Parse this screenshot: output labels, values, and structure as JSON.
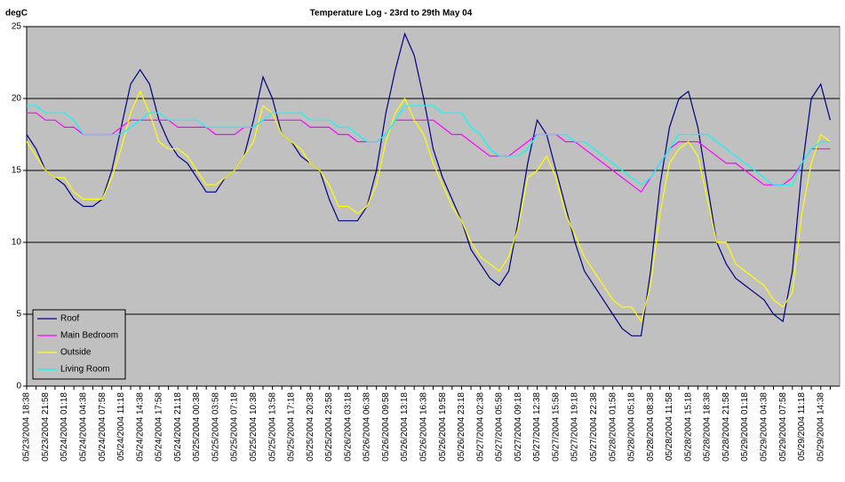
{
  "chart_data": {
    "type": "line",
    "title": "Temperature Log - 23rd to 29th May 04",
    "y_label": "degC",
    "categories": [
      "05/23/2004 18:38",
      null,
      "05/23/2004 21:58",
      null,
      "05/24/2004 01:18",
      null,
      "05/24/2004 04:38",
      null,
      "05/24/2004 07:58",
      null,
      "05/24/2004 11:18",
      null,
      "05/24/2004 14:38",
      null,
      "05/24/2004 17:58",
      null,
      "05/24/2004 21:18",
      null,
      "05/25/2004 00:38",
      null,
      "05/25/2004 03:58",
      null,
      "05/25/2004 07:18",
      null,
      "05/25/2004 10:38",
      null,
      "05/25/2004 13:58",
      null,
      "05/25/2004 17:18",
      null,
      "05/25/2004 20:38",
      null,
      "05/25/2004 23:58",
      null,
      "05/26/2004 03:18",
      null,
      "05/26/2004 06:38",
      null,
      "05/26/2004 09:58",
      null,
      "05/26/2004 13:18",
      null,
      "05/26/2004 16:38",
      null,
      "05/26/2004 19:58",
      null,
      "05/26/2004 23:18",
      null,
      "05/27/2004 02:38",
      null,
      "05/27/2004 05:58",
      null,
      "05/27/2004 09:18",
      null,
      "05/27/2004 12:38",
      null,
      "05/27/2004 15:58",
      null,
      "05/27/2004 19:18",
      null,
      "05/27/2004 22:38",
      null,
      "05/28/2004 01:58",
      null,
      "05/28/2004 05:18",
      null,
      "05/28/2004 08:38",
      null,
      "05/28/2004 11:58",
      null,
      "05/28/2004 15:18",
      null,
      "05/28/2004 18:38",
      null,
      "05/28/2004 21:58",
      null,
      "05/29/2004 01:18",
      null,
      "05/29/2004 04:38",
      null,
      "05/29/2004 07:58",
      null,
      "05/29/2004 11:18",
      null,
      "05/29/2004 14:38",
      null
    ],
    "series": [
      {
        "name": "Roof",
        "color": "#000080",
        "values": [
          17.5,
          16.5,
          15,
          14.5,
          14,
          13,
          12.5,
          12.5,
          13,
          15,
          18,
          21,
          22,
          21,
          18.5,
          17,
          16,
          15.5,
          14.5,
          13.5,
          13.5,
          14.5,
          15,
          16,
          18.5,
          21.5,
          20,
          17.5,
          17,
          16,
          15.5,
          15,
          13,
          11.5,
          11.5,
          11.5,
          12.5,
          15,
          19,
          22,
          24.5,
          23,
          20,
          16.5,
          14.5,
          13,
          11.5,
          9.5,
          8.5,
          7.5,
          7,
          8,
          11.5,
          15.5,
          18.5,
          17.5,
          15,
          12.5,
          10,
          8,
          7,
          6,
          5,
          4,
          3.5,
          3.5,
          8,
          14,
          18,
          20,
          20.5,
          18,
          14,
          10,
          8.5,
          7.5,
          7,
          6.5,
          6,
          5,
          4.5,
          8,
          15,
          20,
          21,
          18.5
        ]
      },
      {
        "name": "Main Bedroom",
        "color": "#ff00ff",
        "values": [
          19,
          19,
          18.5,
          18.5,
          18,
          18,
          17.5,
          17.5,
          17.5,
          17.5,
          18,
          18.5,
          18.5,
          18.5,
          18.5,
          18.5,
          18,
          18,
          18,
          18,
          17.5,
          17.5,
          17.5,
          18,
          18,
          18.5,
          18.5,
          18.5,
          18.5,
          18.5,
          18,
          18,
          18,
          17.5,
          17.5,
          17,
          17,
          17,
          17.5,
          18.5,
          18.5,
          18.5,
          18.5,
          18.5,
          18,
          17.5,
          17.5,
          17,
          16.5,
          16,
          16,
          16,
          16.5,
          17,
          17.5,
          17.5,
          17.5,
          17,
          17,
          16.5,
          16,
          15.5,
          15,
          14.5,
          14,
          13.5,
          14.5,
          15.5,
          16.5,
          17,
          17,
          17,
          16.5,
          16,
          15.5,
          15.5,
          15,
          14.5,
          14,
          14,
          14,
          14.5,
          15.5,
          16.5,
          16.5,
          16.5
        ]
      },
      {
        "name": "Outside",
        "color": "#ffff00",
        "values": [
          17,
          16,
          15,
          14.5,
          14.5,
          13.5,
          13,
          13,
          13,
          14.5,
          16.5,
          19,
          20.5,
          19,
          17,
          16.5,
          16.5,
          16,
          15,
          14,
          14,
          14.5,
          15,
          16,
          17,
          19.5,
          19,
          17.5,
          17,
          16.5,
          15.5,
          15,
          14,
          12.5,
          12.5,
          12,
          12.5,
          14,
          17,
          19,
          20,
          18.5,
          17.5,
          15.5,
          14,
          12.5,
          11.5,
          10,
          9,
          8.5,
          8,
          9,
          11,
          14.5,
          15,
          16,
          14.5,
          12,
          10.5,
          9,
          8,
          7,
          6,
          5.5,
          5.5,
          4.5,
          7,
          12,
          15.5,
          16.5,
          17,
          16,
          13,
          10,
          10,
          8.5,
          8,
          7.5,
          7,
          6,
          5.5,
          6.5,
          12,
          15.5,
          17.5,
          17
        ]
      },
      {
        "name": "Living Room",
        "color": "#00ffff",
        "values": [
          19.5,
          19.5,
          19,
          19,
          19,
          18.5,
          17.5,
          17.5,
          17.5,
          17.5,
          17.5,
          18,
          18.5,
          19,
          19,
          18.5,
          18.5,
          18.5,
          18.5,
          18,
          18,
          18,
          18,
          18,
          18,
          18.5,
          19,
          19,
          19,
          19,
          18.5,
          18.5,
          18.5,
          18,
          18,
          17.5,
          17,
          17,
          17.5,
          18.5,
          19.5,
          19.5,
          19.5,
          19.5,
          19,
          19,
          19,
          18,
          17.5,
          16.5,
          16,
          16,
          16,
          16.5,
          17.5,
          17.5,
          17.5,
          17.5,
          17,
          17,
          16.5,
          16,
          15.5,
          15,
          14.5,
          14,
          14.5,
          15.5,
          16.5,
          17.5,
          17.5,
          17.5,
          17.5,
          17,
          16.5,
          16,
          15.5,
          15,
          14.5,
          14,
          14,
          14,
          15.5,
          16.5,
          17,
          17
        ]
      }
    ],
    "ylim": [
      0,
      25
    ],
    "yticks": [
      0,
      5,
      10,
      15,
      20,
      25
    ],
    "grid": true,
    "legend": "lower left"
  }
}
